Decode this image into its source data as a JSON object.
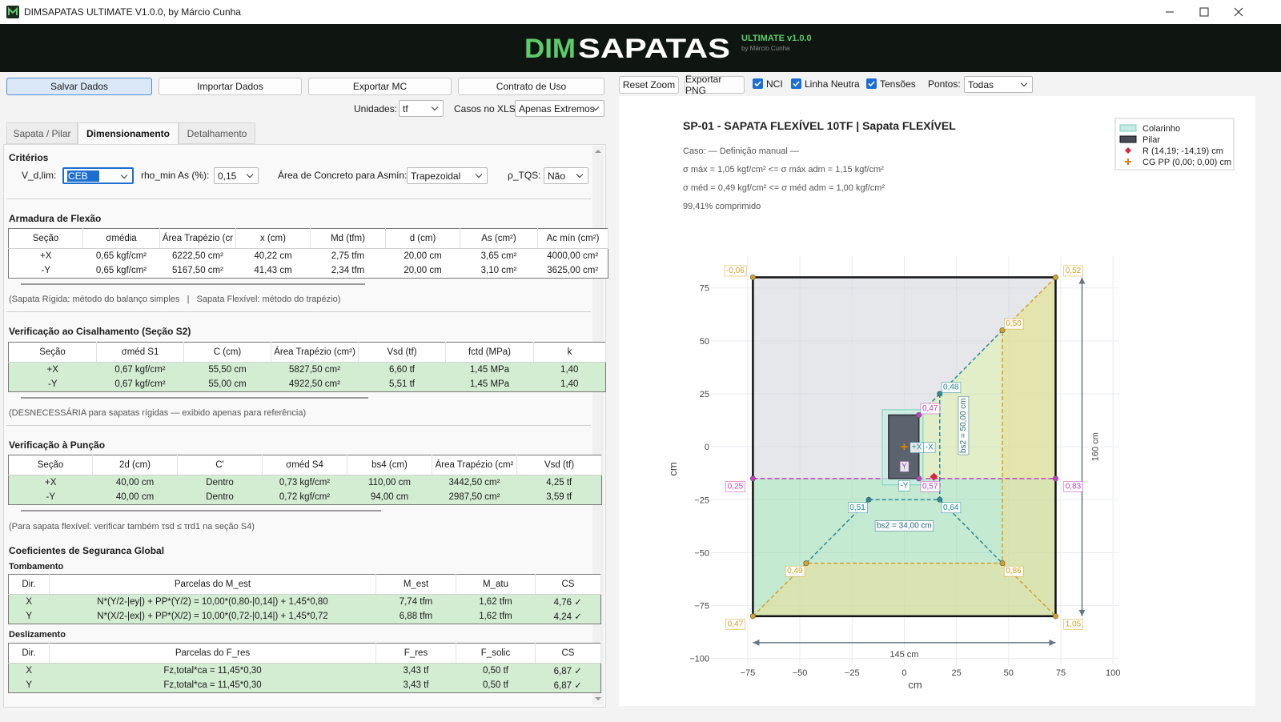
{
  "window": {
    "title": "DIMSAPATAS ULTIMATE V1.0.0, by Márcio Cunha"
  },
  "banner": {
    "logo_a": "DIM",
    "logo_b": "SAPATAS",
    "edition": "ULTIMATE v1.0.0",
    "author": "by Márcio Cunha"
  },
  "toolbar": {
    "buttons": [
      "Salvar Dados",
      "Importar Dados",
      "Exportar MC",
      "Contrato de Uso"
    ],
    "units_label": "Unidades:",
    "units": "tf",
    "cases_label": "Casos no XLS:",
    "cases": "Apenas Extremos"
  },
  "tabs": {
    "items": [
      "Sapata / Pilar",
      "Dimensionamento",
      "Detalhamento"
    ],
    "active": 1
  },
  "criteria": {
    "title": "Critérios",
    "vd_label": "V_d,lim:",
    "vd": "CEB",
    "rho_label": "rho_min As (%):",
    "rho": "0,15",
    "area_label": "Área de Concreto para Asmín:",
    "area": "Trapezoidal",
    "tqs_label": "ρ_TQS:",
    "tqs": "Não"
  },
  "flexure": {
    "title": "Armadura de Flexão",
    "headers": [
      "Seção",
      "σmédia",
      "Área Trapézio (cr",
      "x (cm)",
      "Md (tfm)",
      "d (cm)",
      "As (cm²)",
      "Ac mín (cm²)"
    ],
    "rows": [
      [
        "+X",
        "0,65 kgf/cm²",
        "6222,50 cm²",
        "40,22 cm",
        "2,75 tfm",
        "20,00 cm",
        "3,65 cm²",
        "4000,00 cm²"
      ],
      [
        "-Y",
        "0,65 kgf/cm²",
        "5167,50 cm²",
        "41,43 cm",
        "2,34 tfm",
        "20,00 cm",
        "3,10 cm²",
        "3625,00 cm²"
      ]
    ],
    "note": "(Sapata Rígida: método do balanço simples   |   Sapata Flexível: método do trapézio)"
  },
  "shear": {
    "title": "Verificação ao Cisalhamento (Seção S2)",
    "headers": [
      "Seção",
      "σméd S1",
      "C (cm)",
      "Área Trapézio (cm²)",
      "Vsd (tf)",
      "fctd (MPa)",
      "k"
    ],
    "rows": [
      [
        "+X",
        "0,67 kgf/cm²",
        "55,50 cm",
        "5827,50 cm²",
        "6,60 tf",
        "1,45 MPa",
        "1,40"
      ],
      [
        "-Y",
        "0,67 kgf/cm²",
        "55,00 cm",
        "4922,50 cm²",
        "5,51 tf",
        "1,45 MPa",
        "1,40"
      ]
    ],
    "note": "(DESNECESSÁRIA para sapatas rígidas — exibido apenas para referência)"
  },
  "punching": {
    "title": "Verificação à Punção",
    "headers": [
      "Seção",
      "2d (cm)",
      "C'",
      "σméd S4",
      "bs4 (cm)",
      "Área Trapézio (cm²",
      "Vsd (tf)"
    ],
    "rows": [
      [
        "+X",
        "40,00 cm",
        "Dentro",
        "0,73 kgf/cm²",
        "110,00 cm",
        "3442,50 cm²",
        "4,25 tf"
      ],
      [
        "-Y",
        "40,00 cm",
        "Dentro",
        "0,72 kgf/cm²",
        "94,00 cm",
        "2987,50 cm²",
        "3,59 tf"
      ]
    ],
    "note": "(Para sapata flexível: verificar também τsd ≤ τrd1 na seção S4)"
  },
  "safety": {
    "title": "Coeficientes de Seguranca Global",
    "overturning": {
      "title": "Tombamento",
      "headers": [
        "Dir.",
        "Parcelas do M_est",
        "M_est",
        "M_atu",
        "CS"
      ],
      "rows": [
        [
          "X",
          "N*(Y/2-|ey|) + PP*(Y/2) = 10,00*(0,80-|0,14|) + 1,45*0,80",
          "7,74 tfm",
          "1,62 tfm",
          "4,76 ✓"
        ],
        [
          "Y",
          "N*(X/2-|ex|) + PP*(X/2) = 10,00*(0,72-|0,14|) + 1,45*0,72",
          "6,88 tfm",
          "1,62 tfm",
          "4,24 ✓"
        ]
      ]
    },
    "sliding": {
      "title": "Deslizamento",
      "headers": [
        "Dir.",
        "Parcelas do F_res",
        "F_res",
        "F_solic",
        "CS"
      ],
      "rows": [
        [
          "X",
          "Fz,total*ca = 11,45*0,30",
          "3,43 tf",
          "0,50 tf",
          "6,87 ✓"
        ],
        [
          "Y",
          "Fz,total*ca = 11,45*0,30",
          "3,43 tf",
          "0,50 tf",
          "6,87 ✓"
        ]
      ]
    }
  },
  "plot_toolbar": {
    "buttons": [
      "Reset Zoom",
      "Exportar PNG"
    ],
    "checks": [
      "NCI",
      "Linha Neutra",
      "Tensões"
    ],
    "points_label": "Pontos:",
    "points": "Todas"
  },
  "chart_data": {
    "type": "plan",
    "title": "SP-01 - SAPATA FLEXÍVEL 10TF | Sapata FLEXÍVEL",
    "info": [
      "Caso: — Definição manual —",
      "σ máx = 1,05 kgf/cm² <= σ máx adm = 1,15 kgf/cm²",
      "σ méd = 0,49 kgf/cm² <= σ méd adm = 1,00 kgf/cm²",
      "99,41% comprimido"
    ],
    "xlabel": "cm",
    "ylabel": "cm",
    "xlim": [
      -92.6,
      103
    ],
    "ylim": [
      -103.5,
      90
    ],
    "xticks": [
      {
        "value": -75,
        "label": "−75"
      },
      {
        "value": -50,
        "label": "−50"
      },
      {
        "value": -25,
        "label": "−25"
      },
      0,
      25,
      50,
      75,
      100
    ],
    "yticks": [
      {
        "value": -100,
        "label": "−100"
      },
      {
        "value": -75,
        "label": "−75"
      },
      {
        "value": -50,
        "label": "−50"
      },
      {
        "value": -25,
        "label": "−25"
      },
      0,
      25,
      50,
      75
    ],
    "grid": true,
    "footing": {
      "x": [
        -72.5,
        72.5
      ],
      "y": [
        -80,
        80
      ],
      "width_label": "145 cm",
      "height_label": "160 cm"
    },
    "colarinho": {
      "name": "Colarinho",
      "x": [
        -10.5,
        9
      ],
      "y": [
        -18,
        17.5
      ],
      "color": "#c4ece2"
    },
    "pilar": {
      "name": "Pilar",
      "x": [
        -7.5,
        7
      ],
      "y": [
        -15,
        15
      ],
      "color": "#474c59"
    },
    "resultant": {
      "name": "R (14,19; -14,19) cm",
      "x": 14.19,
      "y": -14.19,
      "color": "#d7263d"
    },
    "cg": {
      "name": "CG PP (0,00; 0,00) cm",
      "x": 0,
      "y": 0,
      "color": "#e07b00"
    },
    "neutral_line": {
      "y": -15,
      "color": "#c040c0"
    },
    "regions": [
      {
        "color": "#d6d7de",
        "points": [
          [
            -72.5,
            80
          ],
          [
            72.5,
            80
          ],
          [
            7,
            15
          ],
          [
            7,
            -15
          ],
          [
            -72.5,
            -15
          ]
        ]
      },
      {
        "color": "#cfe2a4",
        "points": [
          [
            72.5,
            80
          ],
          [
            72.5,
            -15
          ],
          [
            7,
            -15
          ],
          [
            7,
            15
          ]
        ]
      },
      {
        "color": "#9fdcb4",
        "points": [
          [
            -72.5,
            -15
          ],
          [
            72.5,
            -15
          ],
          [
            72.5,
            -80
          ],
          [
            -72.5,
            -80
          ]
        ]
      },
      {
        "color": "#e6df9c",
        "points": [
          [
            -72.5,
            -80
          ],
          [
            72.5,
            -80
          ],
          [
            47,
            -55
          ],
          [
            -47,
            -55
          ]
        ]
      },
      {
        "color": "#e6df9c",
        "points": [
          [
            72.5,
            80
          ],
          [
            72.5,
            -80
          ],
          [
            47,
            -55
          ],
          [
            47,
            55
          ]
        ]
      }
    ],
    "lines": [
      {
        "color": "#d4a12a",
        "points": [
          [
            72.5,
            80
          ],
          [
            47,
            55
          ],
          [
            47,
            -55
          ],
          [
            72.5,
            -80
          ]
        ]
      },
      {
        "color": "#d4a12a",
        "points": [
          [
            -72.5,
            -80
          ],
          [
            -47,
            -55
          ],
          [
            47,
            -55
          ]
        ]
      },
      {
        "color": "#2a8a9a",
        "points": [
          [
            7,
            15
          ],
          [
            17,
            25
          ],
          [
            47,
            55
          ]
        ]
      },
      {
        "color": "#2a8a9a",
        "points": [
          [
            17,
            25
          ],
          [
            17,
            -25
          ]
        ]
      },
      {
        "color": "#2a8a9a",
        "points": [
          [
            -47,
            -55
          ],
          [
            -17,
            -25
          ],
          [
            17,
            -25
          ],
          [
            47,
            -55
          ]
        ]
      }
    ],
    "vertices": [
      {
        "x": -72.5,
        "y": 80,
        "label": "-0,06",
        "color": "#d4a12a"
      },
      {
        "x": 72.5,
        "y": 80,
        "label": "0,52",
        "color": "#d4a12a"
      },
      {
        "x": -72.5,
        "y": -15,
        "label": "0,25",
        "color": "#c040c0"
      },
      {
        "x": 72.5,
        "y": -15,
        "label": "0,83",
        "color": "#c040c0"
      },
      {
        "x": -72.5,
        "y": -80,
        "label": "0,47",
        "color": "#d4a12a"
      },
      {
        "x": 72.5,
        "y": -80,
        "label": "1,05",
        "color": "#d4a12a"
      },
      {
        "x": 47,
        "y": 55,
        "label": "0,50",
        "color": "#d4a12a"
      },
      {
        "x": 17,
        "y": 25,
        "label": "0,48",
        "color": "#2a8a9a"
      },
      {
        "x": 7,
        "y": 15,
        "label": "0,47",
        "color": "#c040c0"
      },
      {
        "x": 7,
        "y": -15,
        "label": "0,57",
        "color": "#c040c0"
      },
      {
        "x": -17,
        "y": -25,
        "label": "0,51",
        "color": "#2a8a9a"
      },
      {
        "x": 17,
        "y": -25,
        "label": "0,64",
        "color": "#2a8a9a"
      },
      {
        "x": -47,
        "y": -55,
        "label": "0,49",
        "color": "#d4a12a"
      },
      {
        "x": 47,
        "y": -55,
        "label": "0,86",
        "color": "#d4a12a"
      }
    ],
    "annotations": [
      {
        "text": "+X",
        "x": 6,
        "y": 0,
        "color": "#2a8a9a"
      },
      {
        "text": "-X",
        "x": 12,
        "y": 0,
        "color": "#2a8a9a"
      },
      {
        "text": "-Y",
        "x": 0,
        "y": -18,
        "color": "#2a8a9a"
      },
      {
        "text": "Y",
        "x": 0,
        "y": -9,
        "color": "#9a4ab0"
      },
      {
        "text": "bs2 = 50,00 cm",
        "x": 28,
        "y": 10,
        "color": "#2a6a8a",
        "angle": -90
      },
      {
        "text": "bs2 = 34,00 cm",
        "x": 0,
        "y": -37,
        "color": "#2a6a8a"
      }
    ]
  }
}
